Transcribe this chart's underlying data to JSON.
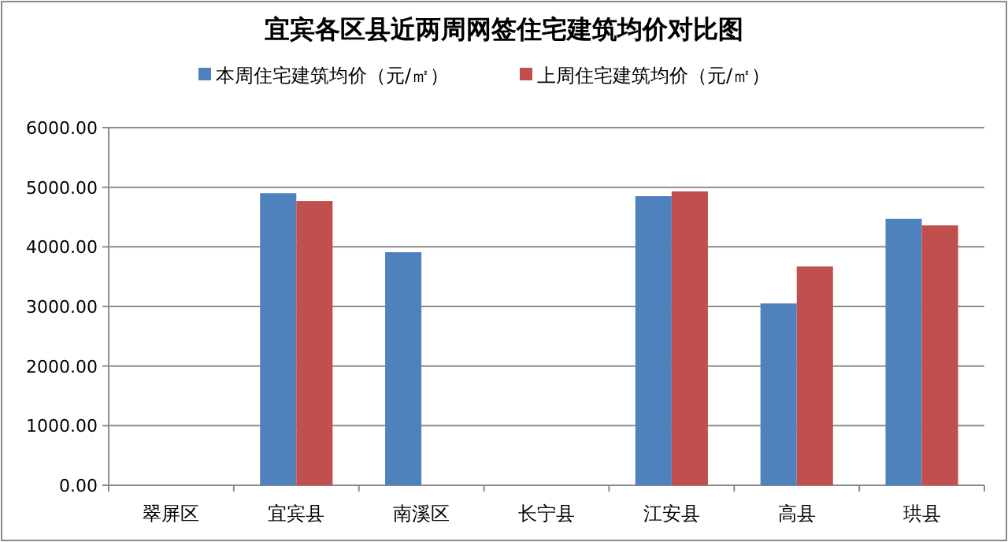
{
  "chart_data": {
    "type": "bar",
    "title": "宜宾各区县近两周网签住宅建筑均价对比图",
    "categories": [
      "翠屏区",
      "宜宾县",
      "南溪区",
      "长宁县",
      "江安县",
      "高县",
      "珙县"
    ],
    "series": [
      {
        "name": "本周住宅建筑均价（元/㎡）",
        "color": "#4f81bd",
        "values": [
          null,
          4900,
          3910,
          null,
          4850,
          3050,
          4470
        ]
      },
      {
        "name": "上周住宅建筑均价（元/㎡）",
        "color": "#c0504d",
        "values": [
          null,
          4770,
          null,
          null,
          4930,
          3670,
          4360
        ]
      }
    ],
    "ylim": [
      0,
      6000
    ],
    "yticks": [
      {
        "value": 0,
        "label": "0.00"
      },
      {
        "value": 1000,
        "label": "1000.00"
      },
      {
        "value": 2000,
        "label": "2000.00"
      },
      {
        "value": 3000,
        "label": "3000.00"
      },
      {
        "value": 4000,
        "label": "4000.00"
      },
      {
        "value": 5000,
        "label": "5000.00"
      },
      {
        "value": 6000,
        "label": "6000.00"
      }
    ],
    "grid": "y",
    "legend": "top"
  }
}
